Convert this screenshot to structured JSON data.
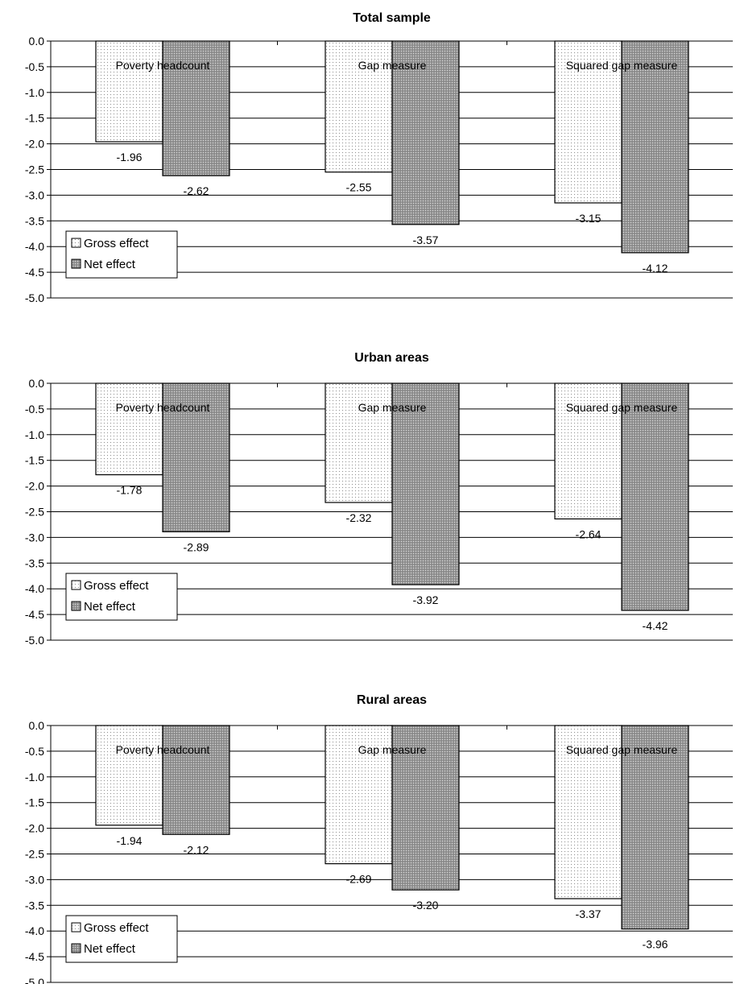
{
  "chart_data": [
    {
      "type": "bar",
      "title": "Total sample",
      "categories": [
        "Poverty headcount",
        "Gap measure",
        "Squared gap measure"
      ],
      "series": [
        {
          "name": "Gross effect",
          "values": [
            -1.96,
            -2.55,
            -3.15
          ]
        },
        {
          "name": "Net effect",
          "values": [
            -2.62,
            -3.57,
            -4.12
          ]
        }
      ],
      "value_labels": [
        [
          "-1.96",
          "-2.55",
          "-3.15"
        ],
        [
          "-2.62",
          "-3.57",
          "-4.12"
        ]
      ],
      "yticks": [
        "0.0",
        "-0.5",
        "-1.0",
        "-1.5",
        "-2.0",
        "-2.5",
        "-3.0",
        "-3.5",
        "-4.0",
        "-4.5",
        "-5.0"
      ],
      "ylim": [
        -5.0,
        0.0
      ],
      "grid": true,
      "legend_position": "bottom-left"
    },
    {
      "type": "bar",
      "title": "Urban areas",
      "categories": [
        "Poverty headcount",
        "Gap measure",
        "Squared gap measure"
      ],
      "series": [
        {
          "name": "Gross effect",
          "values": [
            -1.78,
            -2.32,
            -2.64
          ]
        },
        {
          "name": "Net effect",
          "values": [
            -2.89,
            -3.92,
            -4.42
          ]
        }
      ],
      "value_labels": [
        [
          "-1.78",
          "-2.32",
          "-2.64"
        ],
        [
          "-2.89",
          "-3.92",
          "-4.42"
        ]
      ],
      "yticks": [
        "0.0",
        "-0.5",
        "-1.0",
        "-1.5",
        "-2.0",
        "-2.5",
        "-3.0",
        "-3.5",
        "-4.0",
        "-4.5",
        "-5.0"
      ],
      "ylim": [
        -5.0,
        0.0
      ],
      "grid": true,
      "legend_position": "bottom-left"
    },
    {
      "type": "bar",
      "title": "Rural areas",
      "categories": [
        "Poverty headcount",
        "Gap measure",
        "Squared gap measure"
      ],
      "series": [
        {
          "name": "Gross effect",
          "values": [
            -1.94,
            -2.69,
            -3.37
          ]
        },
        {
          "name": "Net effect",
          "values": [
            -2.12,
            -3.2,
            -3.96
          ]
        }
      ],
      "value_labels": [
        [
          "-1.94",
          "-2.69",
          "-3.37"
        ],
        [
          "-2.12",
          "-3.20",
          "-3.96"
        ]
      ],
      "yticks": [
        "0.0",
        "-0.5",
        "-1.0",
        "-1.5",
        "-2.0",
        "-2.5",
        "-3.0",
        "-3.5",
        "-4.0",
        "-4.5",
        "-5.0"
      ],
      "ylim": [
        -5.0,
        0.0
      ],
      "grid": true,
      "legend_position": "bottom-left"
    }
  ]
}
